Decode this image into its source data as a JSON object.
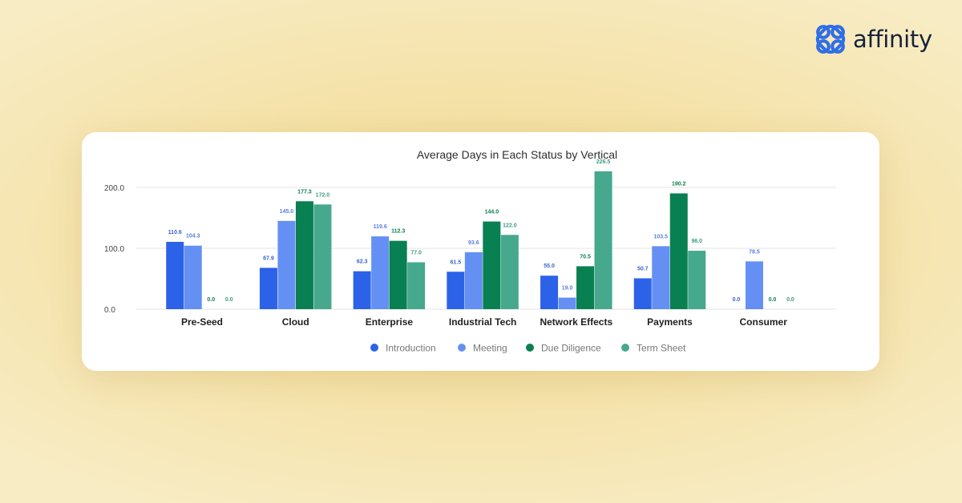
{
  "brand": {
    "name": "affinity",
    "logo_icon": "affinity-logo-icon",
    "logo_color": "#2f6ee5",
    "text_color": "#15233b"
  },
  "chart_data": {
    "type": "bar",
    "title": "Average Days in Each Status by Vertical",
    "xlabel": "",
    "ylabel": "",
    "ylim": [
      0,
      200
    ],
    "yticks": [
      0,
      100,
      200
    ],
    "ytick_labels": [
      "0.0",
      "100.0",
      "200.0"
    ],
    "grid": true,
    "legend_position": "bottom",
    "categories": [
      "Pre-Seed",
      "Cloud",
      "Enterprise",
      "Industrial Tech",
      "Network Effects",
      "Payments",
      "Consumer"
    ],
    "series": [
      {
        "name": "Introduction",
        "color": "#2c62e8",
        "label_color": "#3a64c8",
        "values": [
          110.6,
          67.9,
          62.3,
          61.5,
          55.0,
          50.7,
          0.0
        ],
        "labels": [
          "110.6",
          "67.9",
          "62.3",
          "61.5",
          "55.0",
          "50.7",
          "0.0"
        ]
      },
      {
        "name": "Meeting",
        "color": "#6590f3",
        "label_color": "#5b80dc",
        "values": [
          104.3,
          145.0,
          119.6,
          93.6,
          19.0,
          103.5,
          78.5
        ],
        "labels": [
          "104.3",
          "145.0",
          "119.6",
          "93.6",
          "19.0",
          "103.5",
          "78.5"
        ]
      },
      {
        "name": "Due Diligence",
        "color": "#088051",
        "label_color": "#0c7e4f",
        "values": [
          0.0,
          177.3,
          112.3,
          144.0,
          70.5,
          190.2,
          0.0
        ],
        "labels": [
          "0.0",
          "177.3",
          "112.3",
          "144.0",
          "70.5",
          "190.2",
          "0.0"
        ]
      },
      {
        "name": "Term Sheet",
        "color": "#46a88d",
        "label_color": "#3e9c80",
        "values": [
          0.0,
          172.0,
          77.0,
          122.0,
          226.5,
          96.0,
          0.0
        ],
        "labels": [
          "0.0",
          "172.0",
          "77.0",
          "122.0",
          "226.5",
          "96.0",
          "0.0"
        ]
      }
    ]
  }
}
